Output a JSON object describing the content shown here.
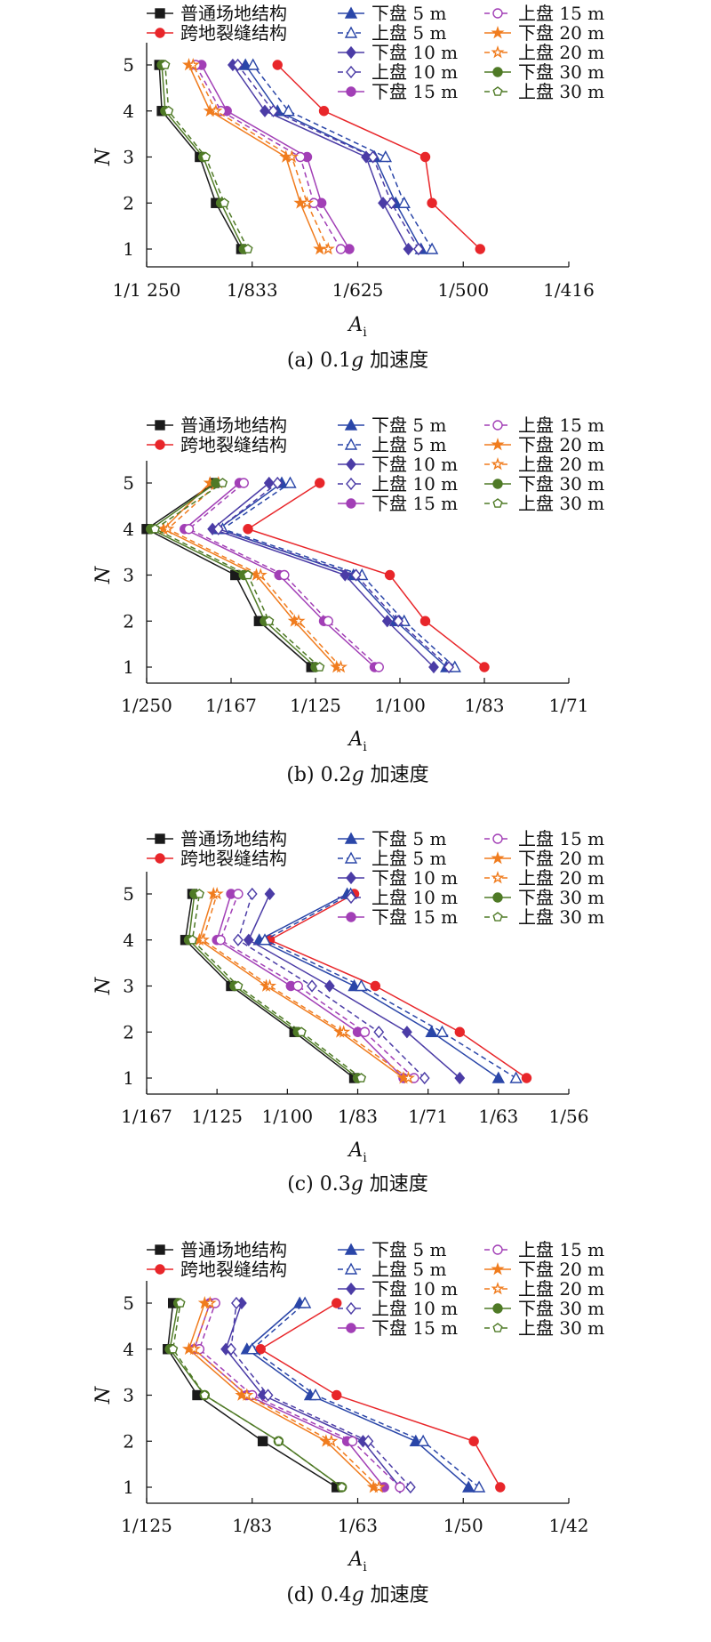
{
  "chart_data": [
    {
      "type": "line",
      "caption_prefix": "(a) 0.1",
      "caption_g": "g",
      "caption_suffix": " 加速度",
      "xlabel_main": "A",
      "xlabel_sub": "i",
      "ylabel": "N",
      "ytick_labels": [
        "1",
        "2",
        "3",
        "4",
        "5"
      ],
      "xtick_labels": [
        "1/1 250",
        "1/833",
        "1/625",
        "1/500",
        "1/416"
      ],
      "xlim": [
        0.0,
        5.0
      ],
      "note": "x values expressed in tick-index units between the printed tick labels",
      "series": [
        {
          "name": "普通场地结构",
          "values": [
            1.12,
            0.82,
            0.63,
            0.18,
            0.15
          ]
        },
        {
          "name": "跨地裂缝结构",
          "values": [
            3.95,
            3.38,
            3.3,
            2.1,
            1.55
          ]
        },
        {
          "name": "下盘 5 m",
          "values": [
            3.25,
            2.95,
            2.7,
            1.55,
            1.17
          ]
        },
        {
          "name": "上盘 5 m",
          "values": [
            3.38,
            3.05,
            2.83,
            1.68,
            1.26
          ]
        },
        {
          "name": "下盘 10 m",
          "values": [
            3.1,
            2.8,
            2.6,
            1.4,
            1.02
          ]
        },
        {
          "name": "上盘 10 m",
          "values": [
            3.22,
            2.9,
            2.68,
            1.5,
            1.08
          ]
        },
        {
          "name": "下盘 15 m",
          "values": [
            2.4,
            2.07,
            1.9,
            0.95,
            0.65
          ]
        },
        {
          "name": "上盘 15 m",
          "values": [
            2.3,
            1.98,
            1.82,
            0.88,
            0.58
          ]
        },
        {
          "name": "下盘 20 m",
          "values": [
            2.05,
            1.82,
            1.65,
            0.75,
            0.5
          ]
        },
        {
          "name": "上盘 20 m",
          "values": [
            2.15,
            1.9,
            1.72,
            0.82,
            0.55
          ]
        },
        {
          "name": "下盘 30 m",
          "values": [
            1.15,
            0.88,
            0.67,
            0.22,
            0.18
          ]
        },
        {
          "name": "上盘 30 m",
          "values": [
            1.2,
            0.92,
            0.7,
            0.26,
            0.22
          ]
        }
      ]
    },
    {
      "type": "line",
      "caption_prefix": "(b) 0.2",
      "caption_g": "g",
      "caption_suffix": " 加速度",
      "xlabel_main": "A",
      "xlabel_sub": "i",
      "ylabel": "N",
      "ytick_labels": [
        "1",
        "2",
        "3",
        "4",
        "5"
      ],
      "xtick_labels": [
        "1/250",
        "1/167",
        "1/125",
        "1/100",
        "1/83",
        "1/71"
      ],
      "xlim": [
        0.0,
        5.0
      ],
      "note": "x values expressed in tick-index units between the printed tick labels",
      "series": [
        {
          "name": "普通场地结构",
          "values": [
            1.95,
            1.33,
            1.05,
            0.0,
            0.8
          ]
        },
        {
          "name": "跨地裂缝结构",
          "values": [
            4.0,
            3.3,
            2.88,
            1.2,
            2.05
          ]
        },
        {
          "name": "下盘 5 m",
          "values": [
            3.55,
            2.95,
            2.45,
            0.85,
            1.6
          ]
        },
        {
          "name": "上盘 5 m",
          "values": [
            3.65,
            3.05,
            2.55,
            0.9,
            1.7
          ]
        },
        {
          "name": "下盘 10 m",
          "values": [
            3.4,
            2.85,
            2.35,
            0.78,
            1.45
          ]
        },
        {
          "name": "上盘 10 m",
          "values": [
            3.58,
            2.98,
            2.48,
            0.85,
            1.55
          ]
        },
        {
          "name": "下盘 15 m",
          "values": [
            2.7,
            2.1,
            1.57,
            0.45,
            1.1
          ]
        },
        {
          "name": "上盘 15 m",
          "values": [
            2.75,
            2.15,
            1.63,
            0.5,
            1.15
          ]
        },
        {
          "name": "下盘 20 m",
          "values": [
            2.25,
            1.75,
            1.3,
            0.2,
            0.75
          ]
        },
        {
          "name": "上盘 20 m",
          "values": [
            2.3,
            1.8,
            1.35,
            0.25,
            0.85
          ]
        },
        {
          "name": "下盘 30 m",
          "values": [
            2.0,
            1.4,
            1.15,
            0.05,
            0.82
          ]
        },
        {
          "name": "上盘 30 m",
          "values": [
            2.05,
            1.45,
            1.2,
            0.1,
            0.9
          ]
        }
      ]
    },
    {
      "type": "line",
      "caption_prefix": "(c) 0.3",
      "caption_g": "g",
      "caption_suffix": " 加速度",
      "xlabel_main": "A",
      "xlabel_sub": "i",
      "ylabel": "N",
      "ytick_labels": [
        "1",
        "2",
        "3",
        "4",
        "5"
      ],
      "xtick_labels": [
        "1/167",
        "1/125",
        "1/100",
        "1/83",
        "1/71",
        "1/63",
        "1/56"
      ],
      "xlim": [
        0.0,
        6.0
      ],
      "note": "x values expressed in tick-index units between the printed tick labels",
      "series": [
        {
          "name": "普通场地结构",
          "values": [
            2.95,
            2.1,
            1.2,
            0.55,
            0.65
          ]
        },
        {
          "name": "跨地裂缝结构",
          "values": [
            5.4,
            4.45,
            3.25,
            1.75,
            2.95
          ]
        },
        {
          "name": "下盘 5 m",
          "values": [
            5.0,
            4.05,
            2.95,
            1.6,
            2.85
          ]
        },
        {
          "name": "上盘 5 m",
          "values": [
            5.25,
            4.2,
            3.05,
            1.68,
            2.9
          ]
        },
        {
          "name": "下盘 10 m",
          "values": [
            4.45,
            3.7,
            2.6,
            1.45,
            1.75
          ]
        },
        {
          "name": "上盘 10 m",
          "values": [
            3.95,
            3.3,
            2.35,
            1.3,
            1.5
          ]
        },
        {
          "name": "下盘 15 m",
          "values": [
            3.65,
            3.0,
            2.05,
            1.0,
            1.2
          ]
        },
        {
          "name": "上盘 15 m",
          "values": [
            3.8,
            3.1,
            2.15,
            1.05,
            1.3
          ]
        },
        {
          "name": "下盘 20 m",
          "values": [
            3.65,
            2.75,
            1.7,
            0.75,
            0.95
          ]
        },
        {
          "name": "上盘 20 m",
          "values": [
            3.72,
            2.8,
            1.75,
            0.8,
            1.0
          ]
        },
        {
          "name": "下盘 30 m",
          "values": [
            3.0,
            2.15,
            1.25,
            0.6,
            0.68
          ]
        },
        {
          "name": "上盘 30 m",
          "values": [
            3.05,
            2.2,
            1.3,
            0.65,
            0.75
          ]
        }
      ]
    },
    {
      "type": "line",
      "caption_prefix": "(d) 0.4",
      "caption_g": "g",
      "caption_suffix": " 加速度",
      "xlabel_main": "A",
      "xlabel_sub": "i",
      "ylabel": "N",
      "ytick_labels": [
        "1",
        "2",
        "3",
        "4",
        "5"
      ],
      "xtick_labels": [
        "1/125",
        "1/83",
        "1/63",
        "1/50",
        "1/42"
      ],
      "xlim": [
        0.0,
        4.0
      ],
      "note": "x values expressed in tick-index units between the printed tick labels",
      "series": [
        {
          "name": "普通场地结构",
          "values": [
            1.8,
            1.1,
            0.48,
            0.2,
            0.25
          ]
        },
        {
          "name": "跨地裂缝结构",
          "values": [
            3.35,
            3.1,
            1.8,
            1.08,
            1.8
          ]
        },
        {
          "name": "下盘 5 m",
          "values": [
            3.05,
            2.55,
            1.55,
            0.95,
            1.45
          ]
        },
        {
          "name": "上盘 5 m",
          "values": [
            3.15,
            2.62,
            1.6,
            1.0,
            1.5
          ]
        },
        {
          "name": "下盘 10 m",
          "values": [
            2.4,
            2.05,
            1.1,
            0.75,
            0.9
          ]
        },
        {
          "name": "上盘 10 m",
          "values": [
            2.5,
            2.1,
            1.15,
            0.8,
            0.85
          ]
        },
        {
          "name": "下盘 15 m",
          "values": [
            2.25,
            1.9,
            0.95,
            0.45,
            0.6
          ]
        },
        {
          "name": "上盘 15 m",
          "values": [
            2.4,
            1.95,
            1.0,
            0.5,
            0.65
          ]
        },
        {
          "name": "下盘 20 m",
          "values": [
            2.15,
            1.7,
            0.9,
            0.4,
            0.55
          ]
        },
        {
          "name": "上盘 20 m",
          "values": [
            2.2,
            1.75,
            0.95,
            0.45,
            0.6
          ]
        },
        {
          "name": "下盘 30 m",
          "values": [
            1.85,
            1.25,
            0.55,
            0.22,
            0.3
          ]
        },
        {
          "name": "上盘 30 m",
          "values": [
            1.85,
            1.25,
            0.55,
            0.25,
            0.32
          ]
        }
      ]
    }
  ],
  "legend_styles": [
    {
      "color": "#1a1a1a",
      "marker": "square",
      "filled": true,
      "dashed": false
    },
    {
      "color": "#e8262a",
      "marker": "circle",
      "filled": true,
      "dashed": false
    },
    {
      "color": "#2a46a8",
      "marker": "triangle",
      "filled": true,
      "dashed": false
    },
    {
      "color": "#2a46a8",
      "marker": "triangle",
      "filled": false,
      "dashed": true
    },
    {
      "color": "#4b3ca6",
      "marker": "diamond",
      "filled": true,
      "dashed": false
    },
    {
      "color": "#4b3ca6",
      "marker": "diamond",
      "filled": false,
      "dashed": true
    },
    {
      "color": "#a23fb6",
      "marker": "circle",
      "filled": true,
      "dashed": false
    },
    {
      "color": "#a23fb6",
      "marker": "circle",
      "filled": false,
      "dashed": true
    },
    {
      "color": "#f07c1e",
      "marker": "star",
      "filled": true,
      "dashed": false
    },
    {
      "color": "#f07c1e",
      "marker": "star",
      "filled": false,
      "dashed": true
    },
    {
      "color": "#4f7a26",
      "marker": "circle",
      "filled": true,
      "dashed": false
    },
    {
      "color": "#4f7a26",
      "marker": "pentagon",
      "filled": false,
      "dashed": true
    }
  ]
}
